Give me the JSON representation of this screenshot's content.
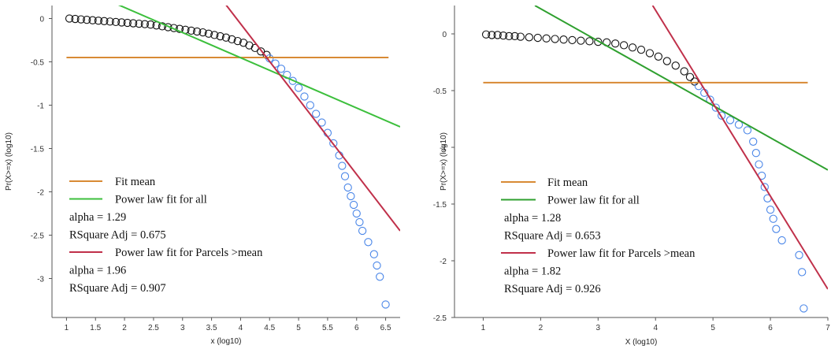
{
  "chart_data": [
    {
      "type": "scatter",
      "xlabel": "x (log10)",
      "ylabel": "Pr(X>=x) (log10)",
      "xlim": [
        0.75,
        6.75
      ],
      "ylim": [
        -3.45,
        0.15
      ],
      "xticks": [
        1,
        1.5,
        2,
        2.5,
        3,
        3.5,
        4,
        4.5,
        5,
        5.5,
        6,
        6.5
      ],
      "xtick_labels": [
        "1",
        "1.5",
        "2",
        "2.5",
        "3",
        "3.5",
        "4",
        "4.5",
        "5",
        "5.5",
        "6",
        "6.5"
      ],
      "yticks": [
        0,
        -0.5,
        -1,
        -1.5,
        -2,
        -2.5,
        -3
      ],
      "ytick_labels": [
        "0",
        "-0.5",
        "-1",
        "-1.5",
        "-2",
        "-2.5",
        "-3"
      ],
      "series": [
        {
          "color": "#111111",
          "marker": "open-circle",
          "points": [
            [
              1.05,
              0
            ],
            [
              1.15,
              -0.005
            ],
            [
              1.25,
              -0.01
            ],
            [
              1.35,
              -0.015
            ],
            [
              1.45,
              -0.02
            ],
            [
              1.55,
              -0.025
            ],
            [
              1.65,
              -0.03
            ],
            [
              1.75,
              -0.035
            ],
            [
              1.85,
              -0.04
            ],
            [
              1.95,
              -0.045
            ],
            [
              2.05,
              -0.05
            ],
            [
              2.15,
              -0.055
            ],
            [
              2.25,
              -0.06
            ],
            [
              2.35,
              -0.065
            ],
            [
              2.45,
              -0.07
            ],
            [
              2.55,
              -0.08
            ],
            [
              2.65,
              -0.09
            ],
            [
              2.75,
              -0.1
            ],
            [
              2.85,
              -0.11
            ],
            [
              2.95,
              -0.12
            ],
            [
              3.05,
              -0.13
            ],
            [
              3.15,
              -0.14
            ],
            [
              3.25,
              -0.15
            ],
            [
              3.35,
              -0.16
            ],
            [
              3.45,
              -0.175
            ],
            [
              3.55,
              -0.19
            ],
            [
              3.65,
              -0.205
            ],
            [
              3.75,
              -0.22
            ],
            [
              3.85,
              -0.24
            ],
            [
              3.95,
              -0.26
            ],
            [
              4.05,
              -0.28
            ],
            [
              4.15,
              -0.31
            ],
            [
              4.25,
              -0.34
            ],
            [
              4.35,
              -0.38
            ],
            [
              4.45,
              -0.42
            ]
          ]
        },
        {
          "color": "#4a86e8",
          "marker": "open-circle",
          "points": [
            [
              4.5,
              -0.46
            ],
            [
              4.6,
              -0.52
            ],
            [
              4.7,
              -0.58
            ],
            [
              4.8,
              -0.65
            ],
            [
              4.9,
              -0.72
            ],
            [
              5.0,
              -0.8
            ],
            [
              5.1,
              -0.9
            ],
            [
              5.2,
              -1.0
            ],
            [
              5.3,
              -1.1
            ],
            [
              5.4,
              -1.2
            ],
            [
              5.5,
              -1.32
            ],
            [
              5.6,
              -1.44
            ],
            [
              5.7,
              -1.58
            ],
            [
              5.75,
              -1.7
            ],
            [
              5.8,
              -1.82
            ],
            [
              5.85,
              -1.95
            ],
            [
              5.9,
              -2.05
            ],
            [
              5.95,
              -2.15
            ],
            [
              6.0,
              -2.25
            ],
            [
              6.05,
              -2.35
            ],
            [
              6.1,
              -2.45
            ],
            [
              6.2,
              -2.58
            ],
            [
              6.3,
              -2.72
            ],
            [
              6.35,
              -2.85
            ],
            [
              6.4,
              -2.98
            ],
            [
              6.5,
              -3.3
            ]
          ]
        }
      ],
      "fit_lines": [
        {
          "color": "#d88a34",
          "x": [
            1.0,
            6.55
          ],
          "y": [
            -0.45,
            -0.45
          ]
        },
        {
          "color": "#3cbf3c",
          "x": [
            1.75,
            6.75
          ],
          "y": [
            0.2,
            -1.25
          ]
        },
        {
          "color": "#c0304a",
          "x": [
            3.7,
            6.75
          ],
          "y": [
            0.2,
            -2.45
          ]
        }
      ],
      "legend": [
        {
          "color": "#d88a34",
          "label": "Fit mean"
        },
        {
          "color": "#3cbf3c",
          "label": "Power law fit for all"
        },
        {
          "text": "alpha = 1.29"
        },
        {
          "text": "RSquare Adj = 0.675"
        },
        {
          "color": "#c0304a",
          "label": "Power law fit for Parcels >mean"
        },
        {
          "text": "alpha = 1.96"
        },
        {
          "text": "RSquare Adj = 0.907"
        }
      ],
      "legend_position": "bottom-left"
    },
    {
      "type": "scatter",
      "xlabel": "X (log10)",
      "ylabel": "Pr(X>=x) (log10)",
      "xlim": [
        0.5,
        7.0
      ],
      "ylim": [
        -2.5,
        0.25
      ],
      "xticks": [
        1,
        2,
        3,
        4,
        5,
        6,
        7
      ],
      "xtick_labels": [
        "1",
        "2",
        "3",
        "4",
        "5",
        "6",
        "7"
      ],
      "yticks": [
        0,
        -0.5,
        -1,
        -1.5,
        -2,
        -2.5
      ],
      "ytick_labels": [
        "0",
        "-0.5",
        "-1",
        "-1.5",
        "-2",
        "-2.5"
      ],
      "series": [
        {
          "color": "#111111",
          "marker": "open-circle",
          "points": [
            [
              1.05,
              -0.005
            ],
            [
              1.15,
              -0.01
            ],
            [
              1.25,
              -0.01
            ],
            [
              1.35,
              -0.015
            ],
            [
              1.45,
              -0.02
            ],
            [
              1.55,
              -0.02
            ],
            [
              1.65,
              -0.025
            ],
            [
              1.8,
              -0.03
            ],
            [
              1.95,
              -0.035
            ],
            [
              2.1,
              -0.04
            ],
            [
              2.25,
              -0.045
            ],
            [
              2.4,
              -0.05
            ],
            [
              2.55,
              -0.055
            ],
            [
              2.7,
              -0.06
            ],
            [
              2.85,
              -0.065
            ],
            [
              3.0,
              -0.07
            ],
            [
              3.15,
              -0.075
            ],
            [
              3.3,
              -0.085
            ],
            [
              3.45,
              -0.1
            ],
            [
              3.6,
              -0.12
            ],
            [
              3.75,
              -0.14
            ],
            [
              3.9,
              -0.17
            ],
            [
              4.05,
              -0.2
            ],
            [
              4.2,
              -0.24
            ],
            [
              4.35,
              -0.28
            ],
            [
              4.5,
              -0.33
            ],
            [
              4.6,
              -0.38
            ],
            [
              4.68,
              -0.42
            ]
          ]
        },
        {
          "color": "#4a86e8",
          "marker": "open-circle",
          "points": [
            [
              4.75,
              -0.46
            ],
            [
              4.85,
              -0.52
            ],
            [
              4.95,
              -0.58
            ],
            [
              5.05,
              -0.65
            ],
            [
              5.15,
              -0.72
            ],
            [
              5.3,
              -0.76
            ],
            [
              5.45,
              -0.8
            ],
            [
              5.6,
              -0.85
            ],
            [
              5.7,
              -0.95
            ],
            [
              5.75,
              -1.05
            ],
            [
              5.8,
              -1.15
            ],
            [
              5.85,
              -1.25
            ],
            [
              5.9,
              -1.35
            ],
            [
              5.95,
              -1.45
            ],
            [
              6.0,
              -1.55
            ],
            [
              6.05,
              -1.63
            ],
            [
              6.1,
              -1.72
            ],
            [
              6.2,
              -1.82
            ],
            [
              6.5,
              -1.95
            ],
            [
              6.55,
              -2.1
            ],
            [
              6.58,
              -2.42
            ]
          ]
        }
      ],
      "fit_lines": [
        {
          "color": "#d88a34",
          "x": [
            1.0,
            6.65
          ],
          "y": [
            -0.43,
            -0.43
          ]
        },
        {
          "color": "#2fa02f",
          "x": [
            1.9,
            7.0
          ],
          "y": [
            0.25,
            -1.2
          ]
        },
        {
          "color": "#c0304a",
          "x": [
            3.95,
            7.0
          ],
          "y": [
            0.25,
            -2.25
          ]
        }
      ],
      "legend": [
        {
          "color": "#d88a34",
          "label": "Fit mean"
        },
        {
          "color": "#2fa02f",
          "label": "Power law fit for all"
        },
        {
          "text": "alpha = 1.28"
        },
        {
          "text": "RSquare Adj = 0.653"
        },
        {
          "color": "#c0304a",
          "label": "Power law fit for Parcels >mean"
        },
        {
          "text": "alpha = 1.82"
        },
        {
          "text": "RSquare Adj = 0.926"
        }
      ],
      "legend_position": "bottom-left"
    }
  ]
}
